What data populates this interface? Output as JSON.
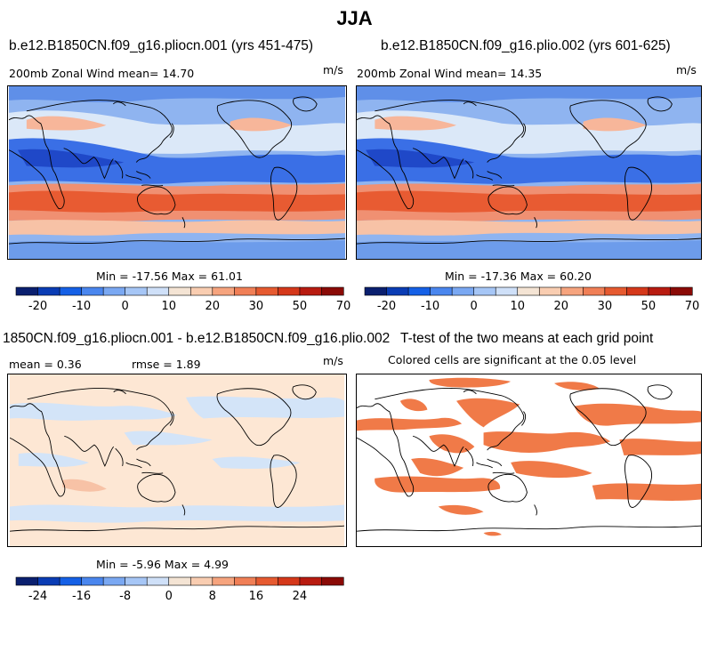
{
  "title": "JJA",
  "panels": {
    "p1": {
      "case": "b.e12.B1850CN.f09_g16.pliocn.001 (yrs 451-475)",
      "variable_mean": "200mb Zonal Wind  mean=  14.70",
      "units": "m/s",
      "minmax": "Min = -17.56 Max =  61.01"
    },
    "p2": {
      "case": "b.e12.B1850CN.f09_g16.plio.002 (yrs 601-625)",
      "variable_mean": "200mb Zonal Wind  mean=  14.35",
      "units": "m/s",
      "minmax": "Min = -17.36 Max =  60.20"
    },
    "p3": {
      "case": "1850CN.f09_g16.pliocn.001 - b.e12.B1850CN.f09_g16.plio.002",
      "mean_label": "mean =   0.36",
      "rmse_label": "rmse =   1.89",
      "units": "m/s",
      "minmax": "Min = -5.96 Max =   4.99"
    },
    "p4": {
      "title": "T-test of the two means at each grid point",
      "subtitle": "Colored cells are significant at the 0.05 level"
    }
  },
  "colorbar_top": {
    "colors": [
      "#0a1f6f",
      "#0a3cb4",
      "#1560e6",
      "#4a86ee",
      "#7aa8f2",
      "#a6c6f6",
      "#cfe0f8",
      "#f4e4d4",
      "#f9cdb1",
      "#f6a47e",
      "#f07f56",
      "#e65a30",
      "#d5381a",
      "#b81b10",
      "#8a0a06"
    ],
    "ticks": [
      "-20",
      "-10",
      "0",
      "10",
      "20",
      "30",
      "50",
      "70"
    ]
  },
  "colorbar_diff": {
    "colors": [
      "#0a1f6f",
      "#0a3cb4",
      "#1560e6",
      "#4a86ee",
      "#7aa8f2",
      "#a6c6f6",
      "#cfe0f8",
      "#f4e4d4",
      "#f9cdb1",
      "#f6a47e",
      "#f07f56",
      "#e65a30",
      "#d5381a",
      "#b81b10",
      "#8a0a06"
    ],
    "ticks": [
      "-24",
      "-16",
      "-8",
      "0",
      "8",
      "16",
      "24"
    ]
  },
  "colors": {
    "significant": "#f07a48",
    "diff_background": "#fde7d4",
    "diff_negative": "#d3e4f8"
  }
}
